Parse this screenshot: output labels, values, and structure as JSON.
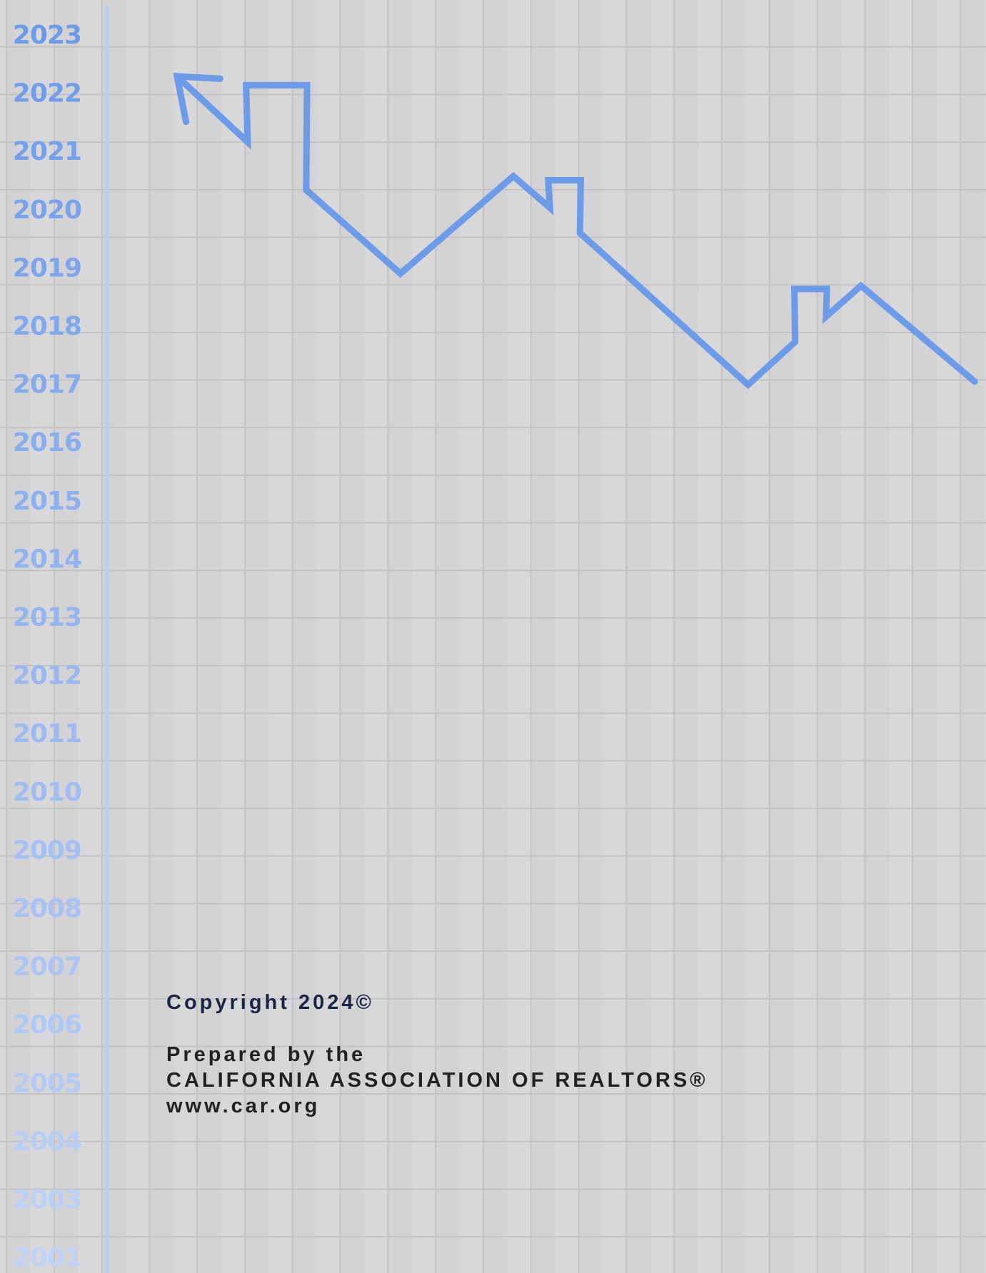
{
  "year_axis": {
    "labels": [
      "2023",
      "2022",
      "2021",
      "2020",
      "2019",
      "2018",
      "2017",
      "2016",
      "2015",
      "2014",
      "2013",
      "2012",
      "2011",
      "2010",
      "2009",
      "2008",
      "2007",
      "2006",
      "2005",
      "2004",
      "2003",
      "2001"
    ]
  },
  "footer": {
    "copyright": "Copyright 2024©",
    "prepared_by": "Prepared by the",
    "organization": "CALIFORNIA ASSOCIATION OF REALTORS®",
    "website": "www.car.org"
  }
}
